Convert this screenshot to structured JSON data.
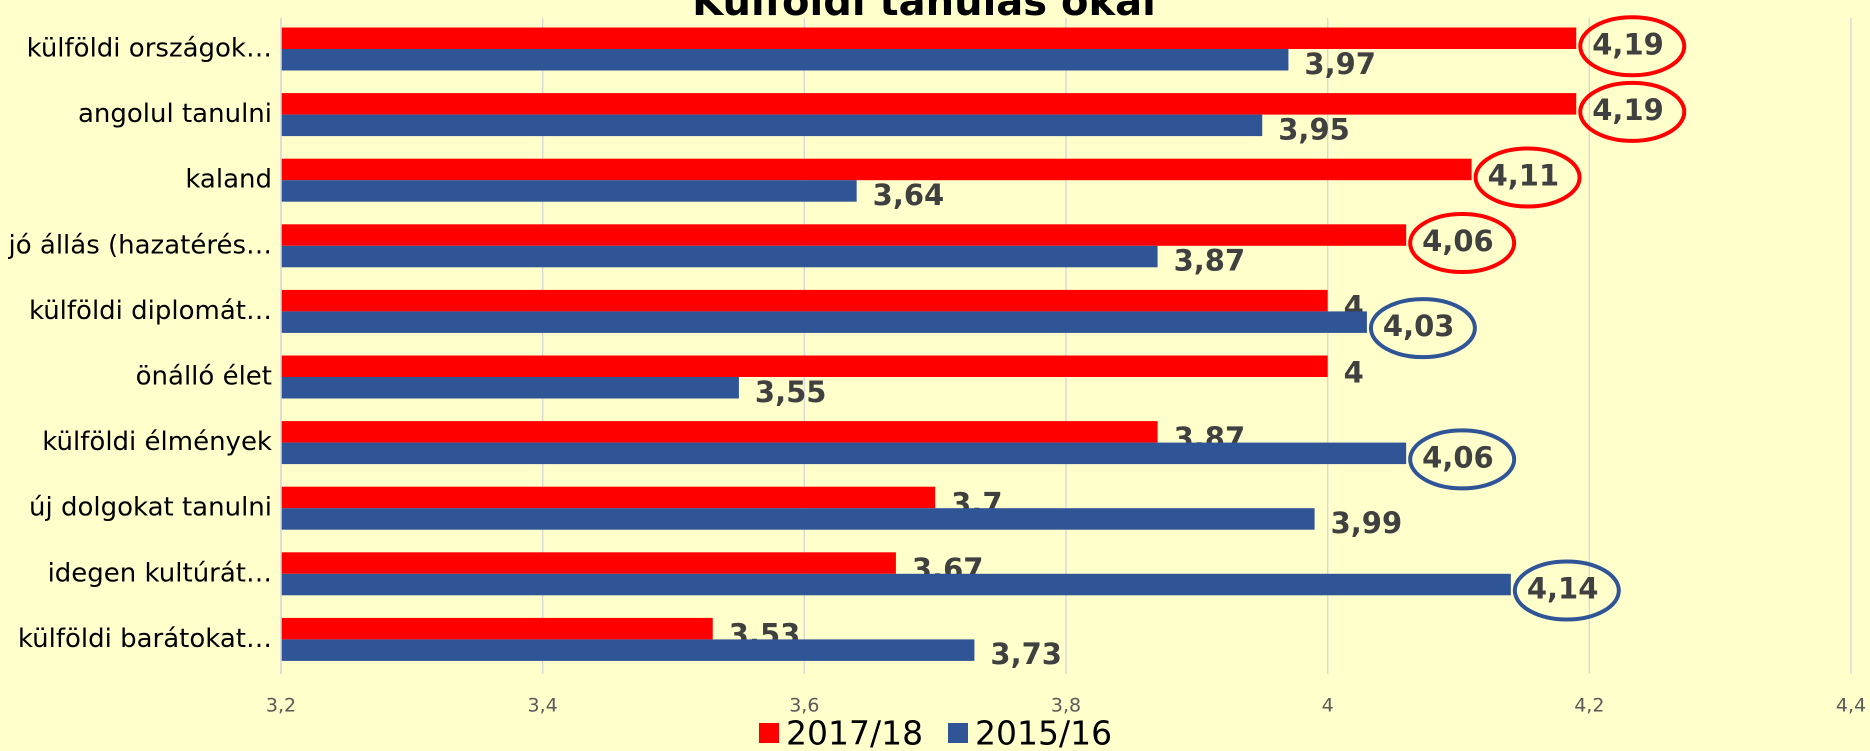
{
  "chart_data": {
    "type": "bar",
    "orientation": "horizontal",
    "title": "Külföldi tanulás okai",
    "categories": [
      "külföldi országok…",
      "angolul tanulni",
      "kaland",
      "jó állás (hazatérés…",
      "külföldi diplomát…",
      "önálló élet",
      "külföldi élmények",
      "új dolgokat tanulni",
      "idegen kultúrát…",
      "külföldi barátokat…"
    ],
    "series": [
      {
        "name": "2017/18",
        "color": "#ff0000",
        "values": [
          4.19,
          4.19,
          4.11,
          4.06,
          4,
          4,
          3.87,
          3.7,
          3.67,
          3.53
        ],
        "value_labels": [
          "4,19",
          "4,19",
          "4,11",
          "4,06",
          "4",
          "4",
          "3,87",
          "3,7",
          "3,67",
          "3,53"
        ]
      },
      {
        "name": "2015/16",
        "color": "#2f5597",
        "values": [
          3.97,
          3.95,
          3.64,
          3.87,
          4.03,
          3.55,
          4.06,
          3.99,
          4.14,
          3.73
        ],
        "value_labels": [
          "3,97",
          "3,95",
          "3,64",
          "3,87",
          "4,03",
          "3,55",
          "4,06",
          "3,99",
          "4,14",
          "3,73"
        ]
      }
    ],
    "xlim": [
      3.2,
      4.4
    ],
    "xticks": [
      {
        "value": 3.2,
        "label": "3,2"
      },
      {
        "value": 3.4,
        "label": "3,4"
      },
      {
        "value": 3.6,
        "label": "3,6"
      },
      {
        "value": 3.8,
        "label": "3,8"
      },
      4,
      {
        "value": 4.2,
        "label": "4,2"
      },
      {
        "value": 4.4,
        "label": "4,4"
      }
    ],
    "grid": true,
    "legend": "bottom"
  }
}
